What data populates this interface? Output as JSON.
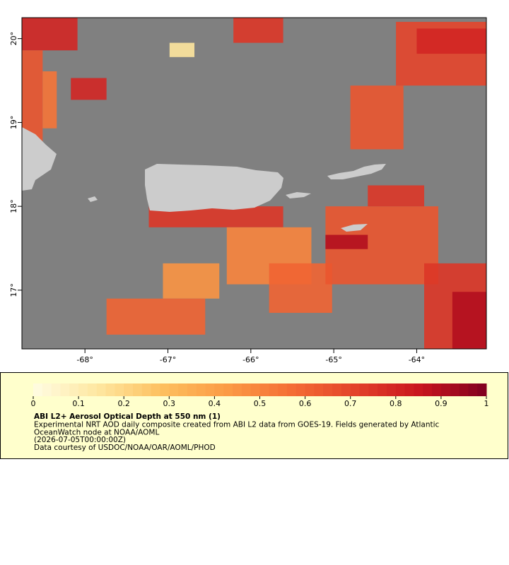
{
  "chart_data": {
    "type": "raster-map",
    "xlim": [
      -68.76,
      -63.16
    ],
    "ylim": [
      16.3,
      20.25
    ],
    "xticks": [
      {
        "value": -68,
        "label": "-68°"
      },
      {
        "value": -67,
        "label": "-67°"
      },
      {
        "value": -66,
        "label": "-66°"
      },
      {
        "value": -65,
        "label": "-65°"
      },
      {
        "value": -64,
        "label": "-64°"
      }
    ],
    "yticks": [
      {
        "value": 17,
        "label": "17°"
      },
      {
        "value": 18,
        "label": "18°"
      },
      {
        "value": 19,
        "label": "19°"
      },
      {
        "value": 20,
        "label": "20°"
      }
    ],
    "background": "#808080",
    "land_color": "#cccccc",
    "patches": [
      {
        "lon": [
          -68.76,
          -68.09
        ],
        "lat": [
          19.86,
          20.25
        ],
        "aod": 0.8
      },
      {
        "lon": [
          -68.76,
          -68.51
        ],
        "lat": [
          18.76,
          19.86
        ],
        "aod": 0.65
      },
      {
        "lon": [
          -68.51,
          -68.34
        ],
        "lat": [
          18.93,
          19.61
        ],
        "aod": 0.55
      },
      {
        "lon": [
          -68.17,
          -67.74
        ],
        "lat": [
          19.27,
          19.53
        ],
        "aod": 0.8
      },
      {
        "lon": [
          -66.21,
          -65.61
        ],
        "lat": [
          19.95,
          20.25
        ],
        "aod": 0.75
      },
      {
        "lon": [
          -66.98,
          -66.68
        ],
        "lat": [
          19.78,
          19.95
        ],
        "aod": 0.15
      },
      {
        "lon": [
          -64.25,
          -63.16
        ],
        "lat": [
          19.44,
          20.2
        ],
        "aod": 0.7
      },
      {
        "lon": [
          -64.0,
          -63.16
        ],
        "lat": [
          19.82,
          20.12
        ],
        "aod": 0.8
      },
      {
        "lon": [
          -64.8,
          -64.16
        ],
        "lat": [
          18.68,
          19.44
        ],
        "aod": 0.65
      },
      {
        "lon": [
          -67.23,
          -65.61
        ],
        "lat": [
          17.75,
          18.0
        ],
        "aod": 0.75
      },
      {
        "lon": [
          -66.29,
          -65.27
        ],
        "lat": [
          17.07,
          17.75
        ],
        "aod": 0.5
      },
      {
        "lon": [
          -65.78,
          -65.02
        ],
        "lat": [
          16.73,
          17.32
        ],
        "aod": 0.6
      },
      {
        "lon": [
          -67.06,
          -66.38
        ],
        "lat": [
          16.9,
          17.32
        ],
        "aod": 0.45
      },
      {
        "lon": [
          -67.74,
          -66.55
        ],
        "lat": [
          16.47,
          16.9
        ],
        "aod": 0.6
      },
      {
        "lon": [
          -65.1,
          -63.74
        ],
        "lat": [
          17.07,
          18.0
        ],
        "aod": 0.65
      },
      {
        "lon": [
          -65.1,
          -64.59
        ],
        "lat": [
          17.49,
          17.66
        ],
        "aod": 0.9
      },
      {
        "lon": [
          -64.59,
          -63.91
        ],
        "lat": [
          18.0,
          18.25
        ],
        "aod": 0.75
      },
      {
        "lon": [
          -63.91,
          -63.16
        ],
        "lat": [
          16.27,
          17.32
        ],
        "aod": 0.75
      },
      {
        "lon": [
          -63.57,
          -63.16
        ],
        "lat": [
          16.3,
          16.98
        ],
        "aod": 0.9
      }
    ],
    "colorbar": {
      "range": [
        0,
        1
      ],
      "ticks": [
        0,
        0.1,
        0.2,
        0.3,
        0.4,
        0.5,
        0.6,
        0.7,
        0.8,
        0.9,
        1
      ],
      "colors": [
        "#fffde3",
        "#fee7a0",
        "#fdbf5e",
        "#fb9a45",
        "#f46d35",
        "#e2412a",
        "#c8141e",
        "#7f0020"
      ]
    },
    "legend": {
      "title": "ABI L2+ Aerosol Optical Depth at 550 nm (1)",
      "lines": [
        "Experimental NRT AOD daily composite created from ABI L2 data from GOES-19. Fields generated by Atlantic",
        "OceanWatch node at NOAA/AOML",
        "(2026-07-05T00:00:00Z)",
        "Data courtesy of USDOC/NOAA/OAR/AOML/PHOD"
      ]
    }
  }
}
